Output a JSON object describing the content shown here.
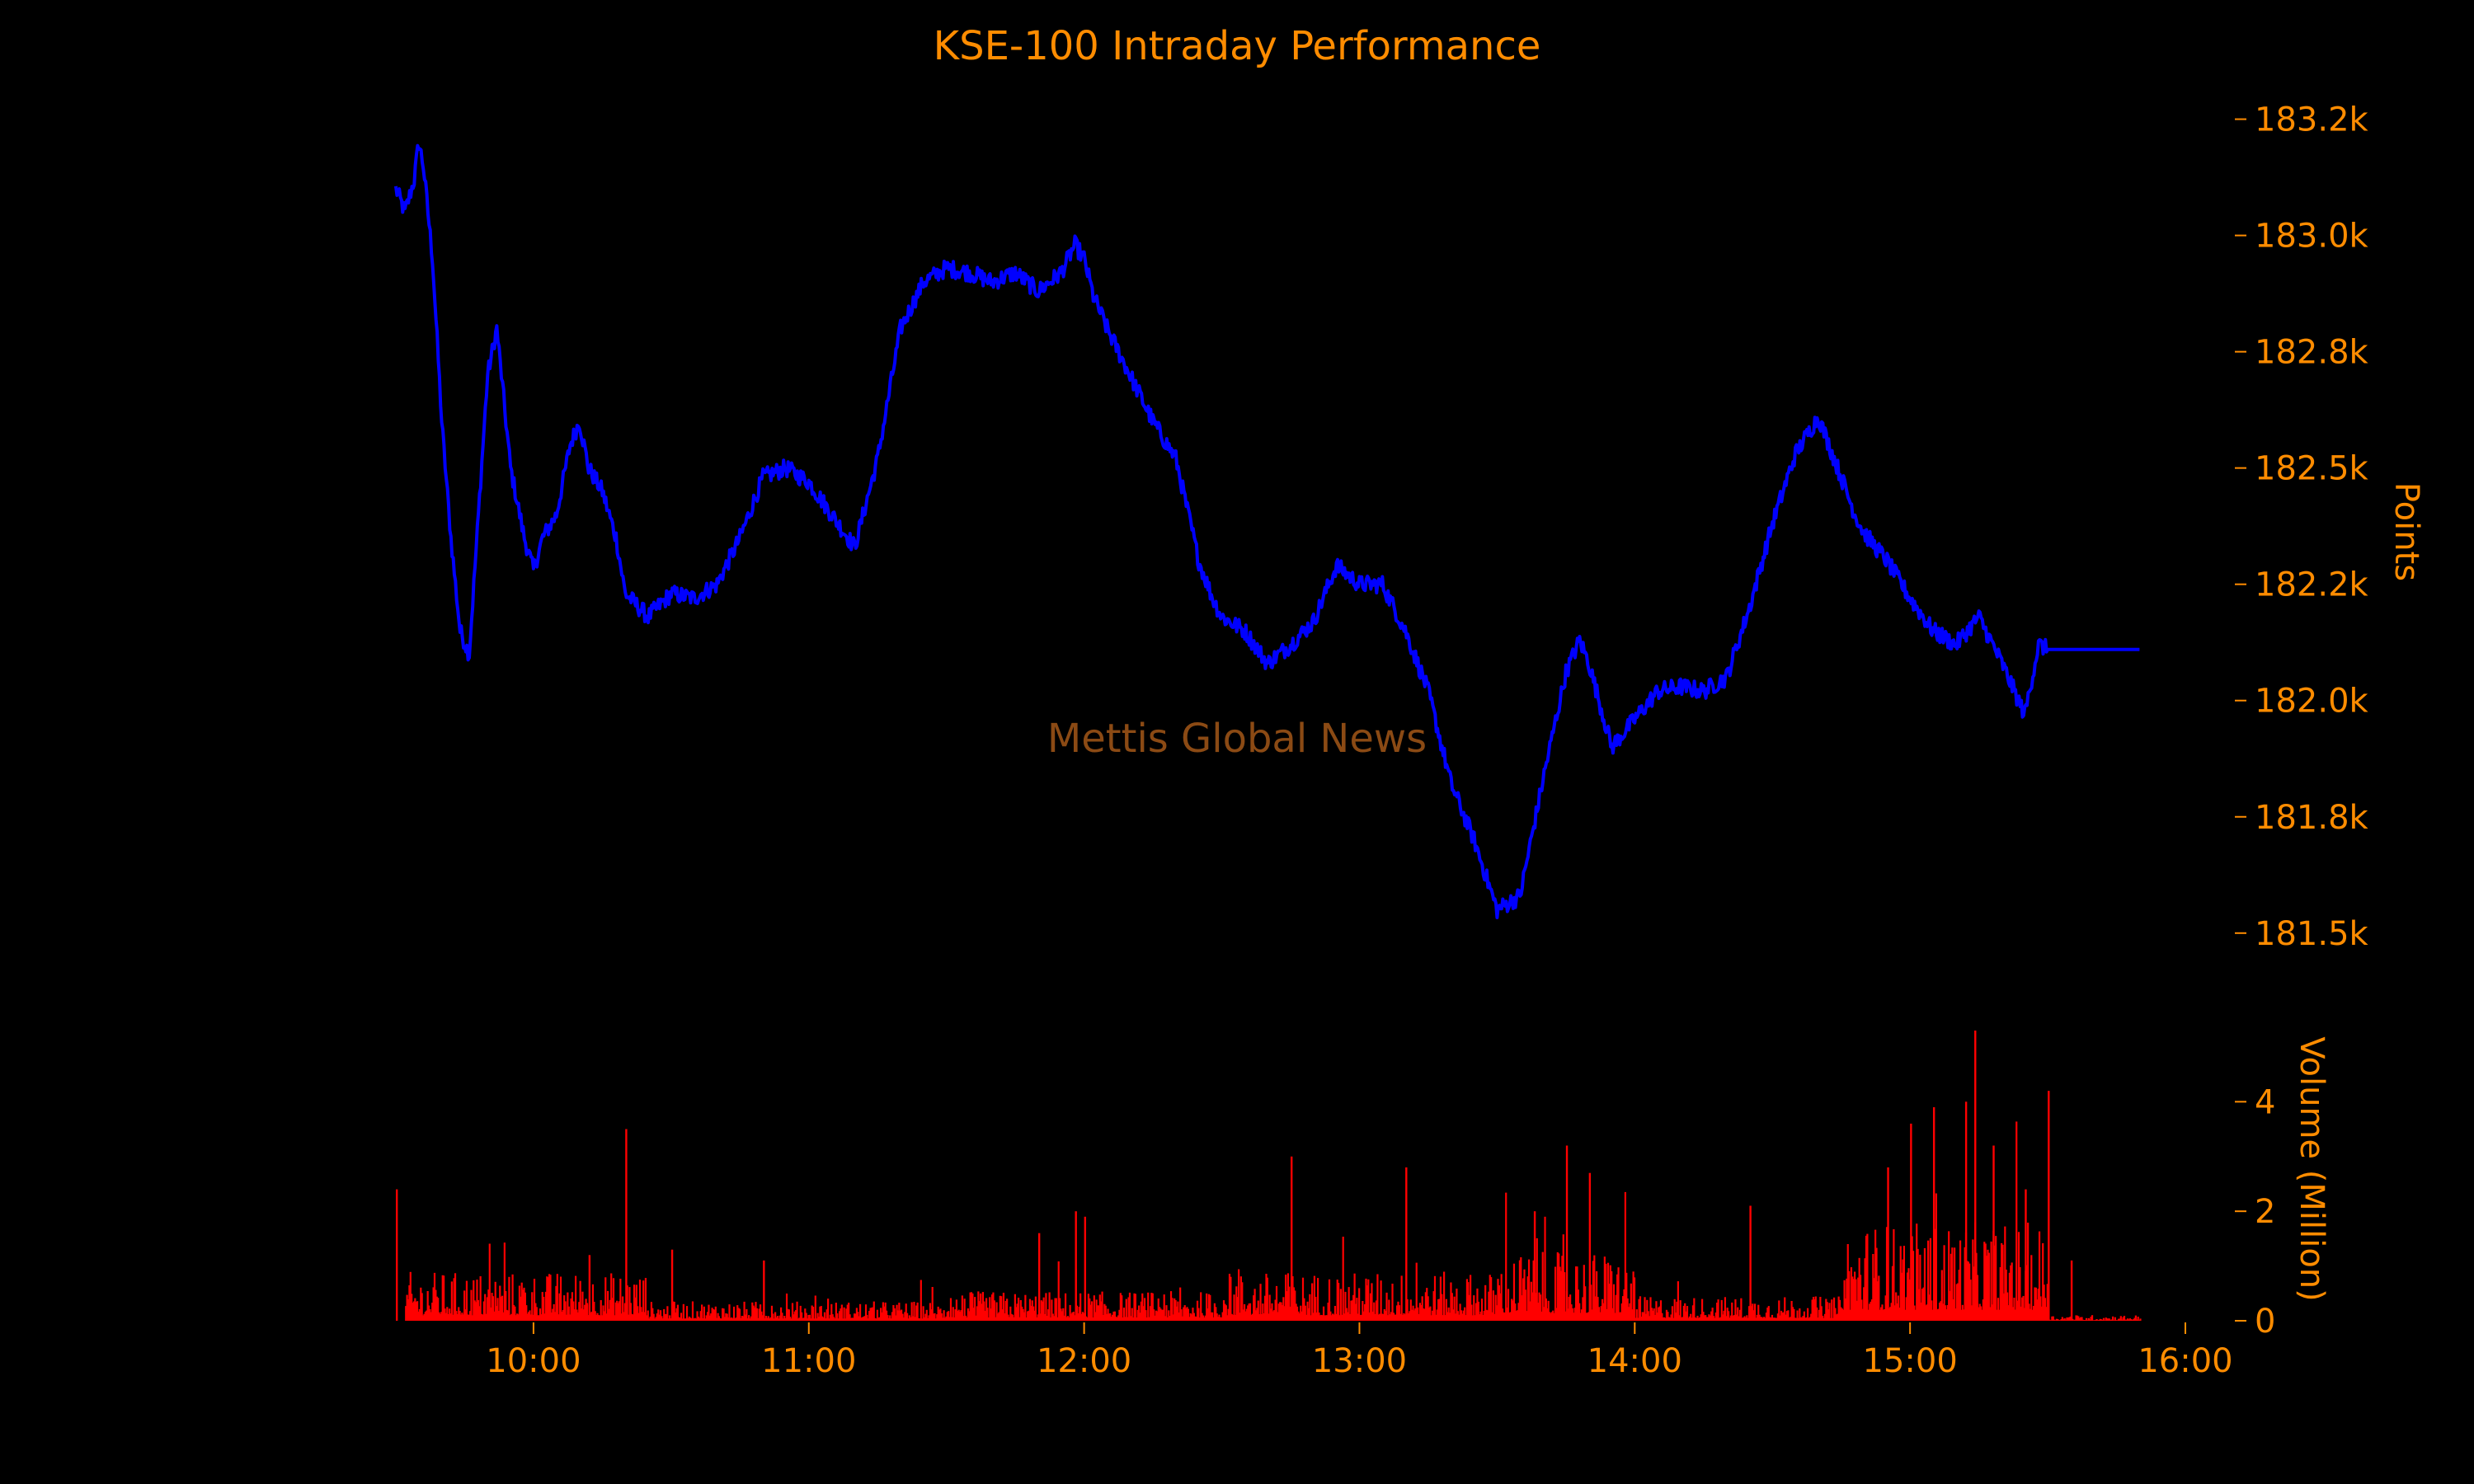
{
  "chart_data": {
    "type": "line",
    "title": "KSE-100 Intraday Performance",
    "watermark": "Mettis Global News",
    "colors": {
      "background": "#000000",
      "text": "#ff8c00",
      "price_line": "#0000ff",
      "volume_bars": "#ff0000",
      "watermark": "#8b4a14"
    },
    "price": {
      "ylabel": "Points",
      "ylim": [
        181450,
        183290
      ],
      "yticks": [
        181500,
        181750,
        182000,
        182250,
        182500,
        182750,
        183000,
        183250
      ],
      "ytick_labels": [
        "181.5k",
        "181.8k",
        "182.0k",
        "182.2k",
        "182.5k",
        "182.8k",
        "183.0k",
        "183.2k"
      ],
      "series": [
        {
          "x": [
            "09:30",
            "09:32",
            "09:34",
            "09:35",
            "09:36",
            "09:38",
            "09:40",
            "09:42",
            "09:44",
            "09:46",
            "09:48",
            "09:50",
            "09:52",
            "09:55",
            "09:58",
            "10:00",
            "10:02",
            "10:05",
            "10:08",
            "10:10",
            "10:12",
            "10:15",
            "10:18",
            "10:20",
            "10:25",
            "10:28",
            "10:30",
            "10:35",
            "10:40",
            "10:45",
            "10:50",
            "10:55",
            "11:00",
            "11:05",
            "11:10",
            "11:15",
            "11:20",
            "11:25",
            "11:30",
            "11:35",
            "11:40",
            "11:45",
            "11:50",
            "11:55",
            "11:58",
            "12:00",
            "12:02",
            "12:05",
            "12:10",
            "12:15",
            "12:20",
            "12:25",
            "12:28",
            "12:30",
            "12:35",
            "12:40",
            "12:45",
            "12:50",
            "12:55",
            "13:00",
            "13:05",
            "13:10",
            "13:15",
            "13:20",
            "13:25",
            "13:30",
            "13:35",
            "13:40",
            "13:45",
            "13:48",
            "13:50",
            "13:55",
            "14:00",
            "14:05",
            "14:10",
            "14:15",
            "14:20",
            "14:25",
            "14:30",
            "14:35",
            "14:40",
            "14:45",
            "14:48",
            "14:50",
            "14:55",
            "15:00",
            "15:05",
            "15:10",
            "15:15",
            "15:20",
            "15:25",
            "15:28",
            "15:30",
            "15:40",
            "15:50"
          ],
          "values": [
            183100,
            183050,
            183120,
            183200,
            183150,
            182950,
            182600,
            182350,
            182150,
            182100,
            182400,
            182700,
            182800,
            182500,
            182350,
            182280,
            182350,
            182400,
            182550,
            182600,
            182500,
            182450,
            182350,
            182230,
            182180,
            182210,
            182230,
            182220,
            182250,
            182350,
            182480,
            182500,
            182470,
            182400,
            182330,
            182520,
            182800,
            182900,
            182930,
            182920,
            182900,
            182920,
            182880,
            182920,
            182980,
            182950,
            182870,
            182800,
            182700,
            182600,
            182520,
            182300,
            182220,
            182180,
            182150,
            182080,
            182120,
            182170,
            182290,
            182250,
            182250,
            182150,
            182020,
            181820,
            181700,
            181550,
            181580,
            181830,
            182060,
            182130,
            182080,
            181900,
            181960,
            182020,
            182030,
            182020,
            182050,
            182200,
            182380,
            182530,
            182610,
            182480,
            182400,
            182360,
            182300,
            182220,
            182150,
            182120,
            182180,
            182080,
            181970,
            182120,
            182110,
            182110,
            182110
          ]
        }
      ]
    },
    "volume": {
      "ylabel": "Volume (Million)",
      "ylim": [
        0,
        5.3
      ],
      "yticks": [
        0,
        2,
        4
      ],
      "ytick_labels": [
        "0",
        "2",
        "4"
      ],
      "spikes": [
        {
          "x": "09:30",
          "value": 2.4
        },
        {
          "x": "10:12",
          "value": 1.2
        },
        {
          "x": "10:20",
          "value": 3.5
        },
        {
          "x": "10:30",
          "value": 1.3
        },
        {
          "x": "10:50",
          "value": 1.1
        },
        {
          "x": "11:50",
          "value": 1.6
        },
        {
          "x": "11:58",
          "value": 2.0
        },
        {
          "x": "12:00",
          "value": 1.9
        },
        {
          "x": "12:45",
          "value": 3.0
        },
        {
          "x": "13:10",
          "value": 2.8
        },
        {
          "x": "13:38",
          "value": 2.0
        },
        {
          "x": "13:45",
          "value": 3.2
        },
        {
          "x": "13:50",
          "value": 2.7
        },
        {
          "x": "14:25",
          "value": 2.1
        },
        {
          "x": "14:55",
          "value": 2.8
        },
        {
          "x": "15:00",
          "value": 3.6
        },
        {
          "x": "15:05",
          "value": 3.9
        },
        {
          "x": "15:12",
          "value": 4.0
        },
        {
          "x": "15:14",
          "value": 5.3
        },
        {
          "x": "15:18",
          "value": 3.2
        },
        {
          "x": "15:25",
          "value": 2.4
        },
        {
          "x": "15:30",
          "value": 4.2
        },
        {
          "x": "15:35",
          "value": 1.1
        }
      ],
      "baseline": [
        {
          "from": "09:32",
          "to": "10:25",
          "value": 0.5
        },
        {
          "from": "10:25",
          "to": "11:30",
          "value": 0.2
        },
        {
          "from": "11:30",
          "to": "12:30",
          "value": 0.3
        },
        {
          "from": "12:30",
          "to": "13:30",
          "value": 0.5
        },
        {
          "from": "13:30",
          "to": "14:00",
          "value": 0.7
        },
        {
          "from": "14:00",
          "to": "14:45",
          "value": 0.25
        },
        {
          "from": "14:45",
          "to": "15:30",
          "value": 1.0
        },
        {
          "from": "15:30",
          "to": "15:50",
          "value": 0.06
        }
      ]
    },
    "xaxis": {
      "xlim": [
        "09:30",
        "16:00"
      ],
      "ticks": [
        "10:00",
        "11:00",
        "12:00",
        "13:00",
        "14:00",
        "15:00",
        "16:00"
      ]
    }
  }
}
